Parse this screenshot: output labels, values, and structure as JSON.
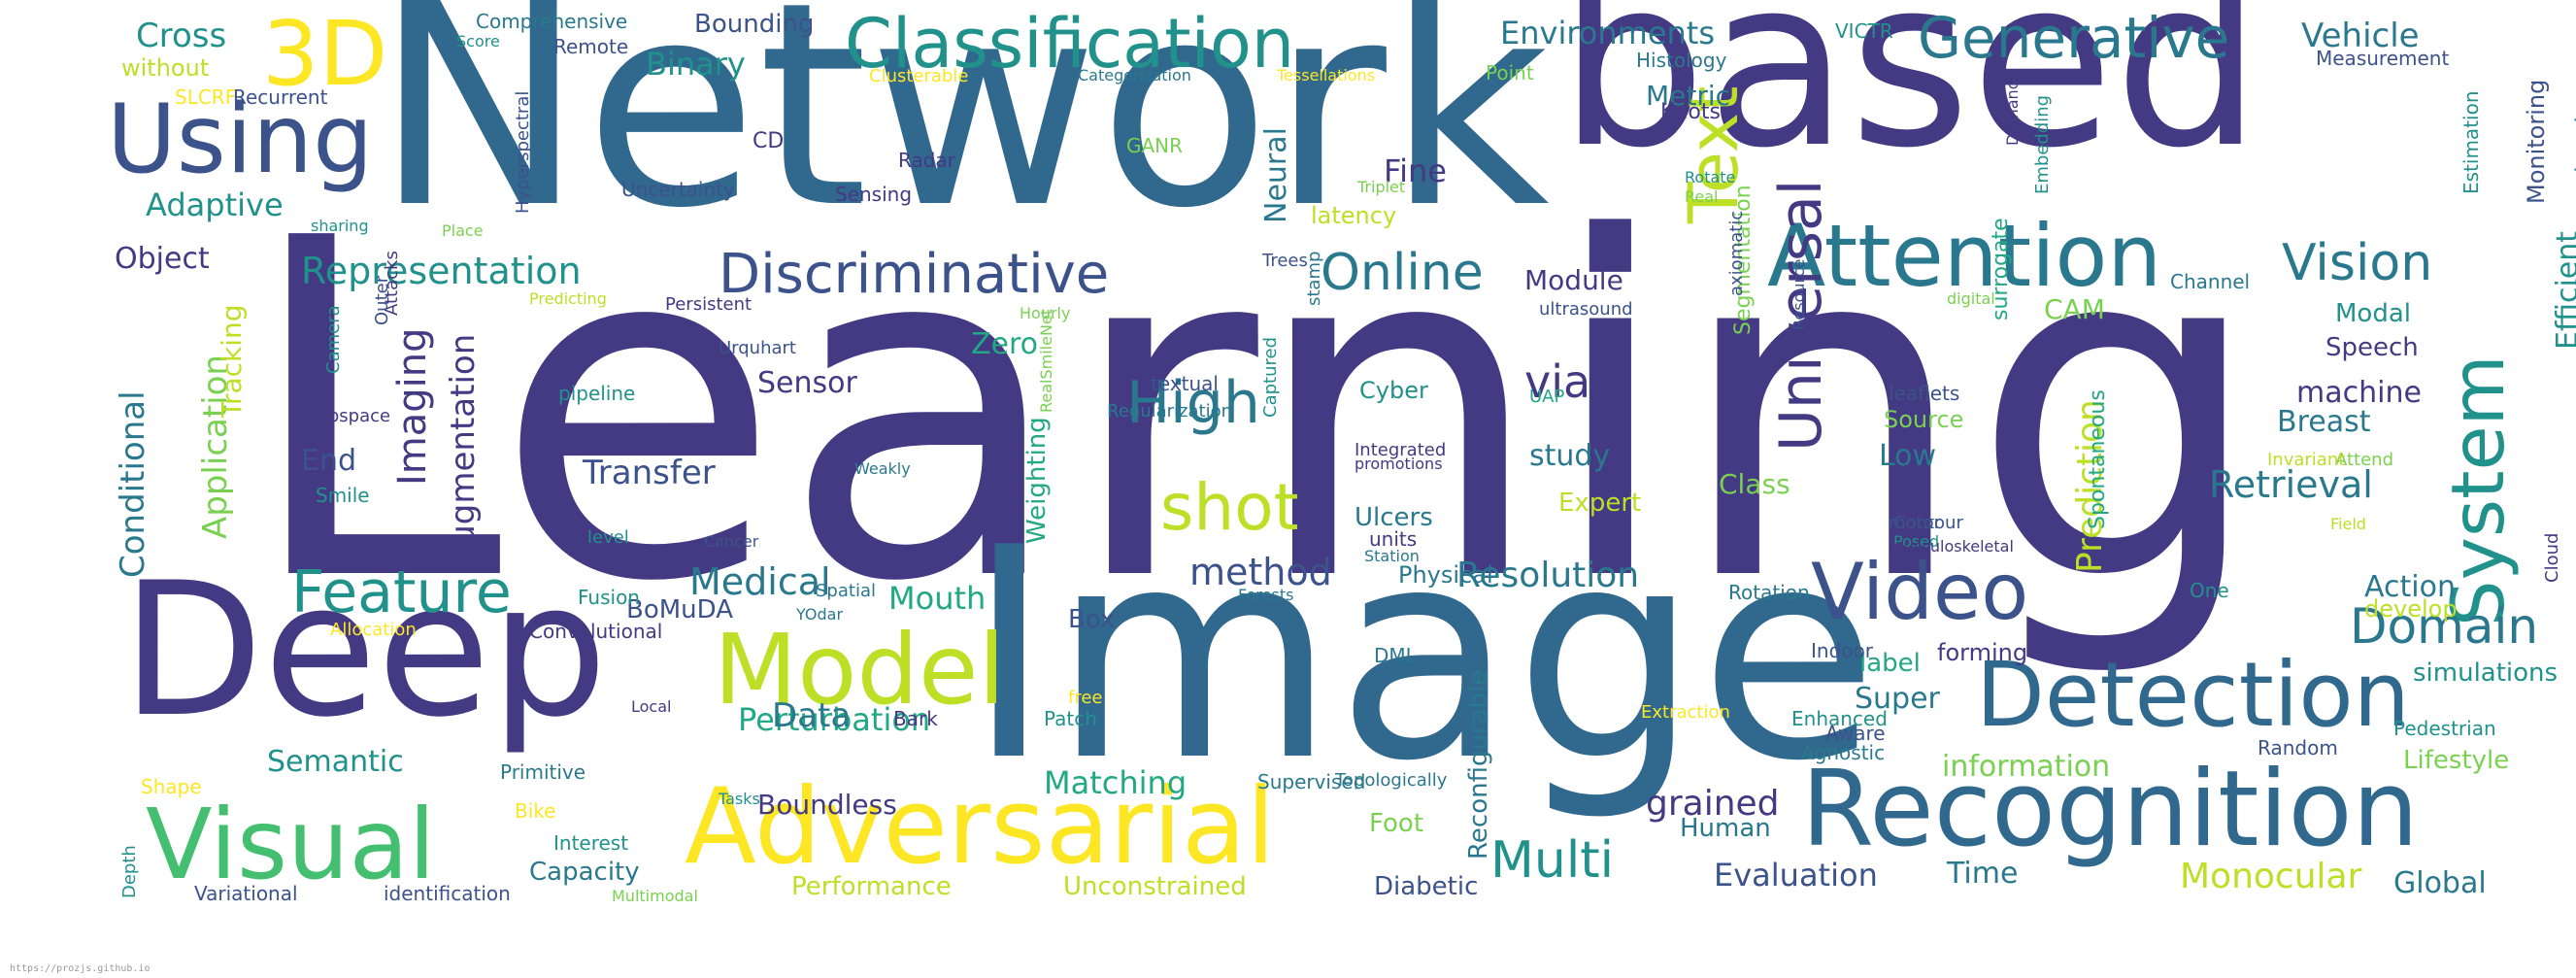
{
  "palette": {
    "dark_purple": "#443983",
    "indigo": "#3b528b",
    "blue": "#31688e",
    "teal": "#2a788e",
    "teal_green": "#21918c",
    "green": "#22a884",
    "light_green": "#44bf70",
    "lime": "#7ad151",
    "yellow_green": "#bddf26",
    "yellow": "#fde725",
    "background": "#ffffff"
  },
  "footer": {
    "url": "https://prozjs.github.io"
  },
  "words": [
    "Learning",
    "Network",
    "based",
    "Image",
    "Deep",
    "Recognition",
    "Detection",
    "Adversarial",
    "Visual",
    "Classification",
    "Attention",
    "Video",
    "Model",
    "Using",
    "3D",
    "Generative",
    "System",
    "Text",
    "Discriminative",
    "Feature",
    "shot",
    "High",
    "Online",
    "Domain",
    "Vision",
    "Universal",
    "Multi",
    "Representation",
    "Vehicle",
    "Retrieval",
    "Resolution",
    "Medical",
    "Cross",
    "Environments",
    "via",
    "Perturbation",
    "Matching",
    "Data",
    "Adaptive",
    "Transfer",
    "grained",
    "Evaluation",
    "Monocular",
    "Prediction",
    "method",
    "Mouth",
    "Imaging",
    "Conditional",
    "Application",
    "Tracking",
    "Augmentation",
    "Semantic",
    "Sensor",
    "Object",
    "Binary",
    "Metric",
    "Fine",
    "Neural",
    "Module",
    "study",
    "Low",
    "Super",
    "label",
    "Action",
    "Breast",
    "machine",
    "Zero",
    "Boundless",
    "Global",
    "Time",
    "Speech",
    "Modal",
    "CAM",
    "Class",
    "Source",
    "Efficient",
    "information",
    "Expert",
    "Monitoring",
    "Conversational",
    "Ulcers",
    "Cyber",
    "Physical",
    "End",
    "BoMuDA",
    "Performance",
    "Unconstrained",
    "Human",
    "Diabetic",
    "Capacity",
    "Box",
    "Foot",
    "Weighting",
    "Reconfigurable",
    "Lifestyle",
    "simulations",
    "develop",
    "forming",
    "surrogate",
    "Spontaneous",
    "Segmentation",
    "Comprehensive",
    "Bounding",
    "without",
    "Remote",
    "latency",
    "Uncertainty",
    "Sensing",
    "Recurrent",
    "SLCRF",
    "Score",
    "Clusterable",
    "Categorization",
    "Tessellations",
    "Point",
    "Histology",
    "VICTR",
    "Measurement",
    "Demand",
    "Estimation",
    "Embedding",
    "Knots",
    "CD",
    "GANR",
    "Radar",
    "Triplet",
    "Rotate",
    "Real",
    "sharing",
    "Place",
    "Hyperspectral",
    "Trees",
    "stamp",
    "Hourly",
    "Persistent",
    "Predicting",
    "Attacks",
    "Camera",
    "Outer",
    "Urquhart",
    "textual",
    "ultrasound",
    "axiomatic",
    "Resource",
    "digital",
    "pipeline",
    "Subspace",
    "RealSmileNet",
    "Regularization",
    "Captured",
    "Integrated",
    "promotions",
    "UAP",
    "Channel",
    "leaflets",
    "Attend",
    "Invariant",
    "Smile",
    "level",
    "Weakly",
    "Cancer",
    "units",
    "Station",
    "Posed",
    "Contour",
    "motor",
    "musculoskeletal",
    "Field",
    "Cloud",
    "Fusion",
    "Convolutional",
    "Allocation",
    "Forests",
    "YOdar",
    "Spatial",
    "Rotation",
    "One",
    "Indoor",
    "DML",
    "free",
    "Local",
    "Extraction",
    "Enhanced",
    "Aware",
    "Pedestrian",
    "Agnostic",
    "Random",
    "Patch",
    "Bark",
    "Primitive",
    "Shape",
    "Supervised",
    "Topologically",
    "Depth",
    "Bike",
    "Tasks",
    "Interest",
    "Variational",
    "identification",
    "Multimodal"
  ]
}
